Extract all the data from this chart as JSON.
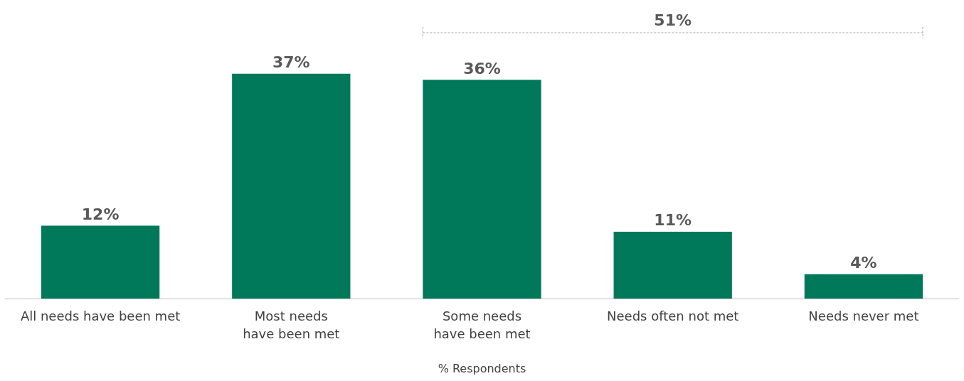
{
  "chart_data": {
    "type": "bar",
    "xlabel": "% Respondents",
    "categories": [
      "All needs have been met",
      "Most needs\nhave been met",
      "Some needs\nhave been met",
      "Needs often not met",
      "Needs never met"
    ],
    "values": [
      12,
      37,
      36,
      11,
      4
    ],
    "color": "#00795a",
    "value_labels": [
      "12%",
      "37%",
      "36%",
      "11%",
      "4%"
    ],
    "annotations": [
      "51%"
    ]
  }
}
